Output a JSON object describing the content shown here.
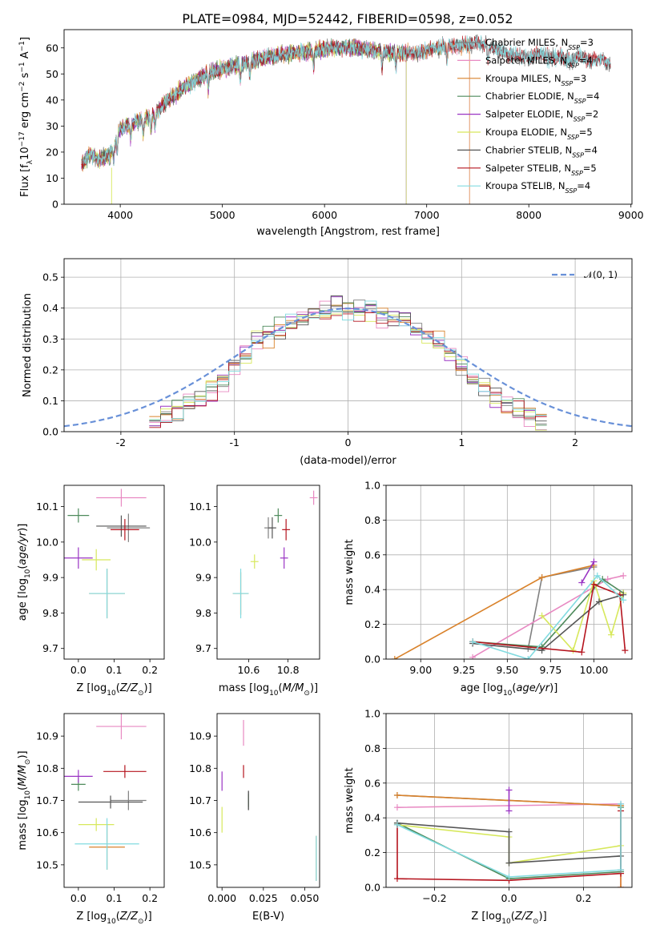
{
  "figure": {
    "title": "PLATE=0984, MJD=52442, FIBERID=0598, z=0.052"
  },
  "model_colors": [
    "#808080",
    "#e889c2",
    "#d9822b",
    "#4d8a5b",
    "#9a34c4",
    "#d7e85c",
    "#555555",
    "#b5141e",
    "#82dbe0"
  ],
  "chart_data": [
    {
      "id": "spectrum",
      "type": "line",
      "title": "PLATE=0984, MJD=52442, FIBERID=0598, z=0.052",
      "xlabel": "wavelength [Angstrom, rest frame]",
      "ylabel": "Flux [f_λ 10^-17 erg cm^-2 s^-1 A^-1]",
      "xlim": [
        3450,
        9010
      ],
      "ylim": [
        0,
        67
      ],
      "xticks": [
        4000,
        5000,
        6000,
        7000,
        8000,
        9000
      ],
      "yticks": [
        0,
        10,
        20,
        30,
        40,
        50,
        60
      ],
      "grid": false,
      "legend_position": "top-right",
      "continuum": {
        "x": [
          3620,
          3700,
          3800,
          3900,
          3960,
          4000,
          4100,
          4200,
          4300,
          4400,
          4500,
          4700,
          4900,
          5100,
          5300,
          5500,
          5700,
          5900,
          6100,
          6300,
          6500,
          6700,
          6900,
          7100,
          7300,
          7500,
          7600,
          7700,
          7800,
          7900,
          8000,
          8100,
          8200,
          8300,
          8400,
          8500,
          8600,
          8700,
          8800
        ],
        "y": [
          15,
          19,
          17,
          19,
          25,
          29,
          31,
          32,
          34,
          37,
          41,
          47,
          51,
          53,
          55,
          57,
          58,
          59,
          60,
          60,
          59,
          58,
          58,
          60,
          61,
          62,
          61,
          59,
          58,
          57,
          56,
          58,
          56,
          57,
          55,
          57,
          55,
          56,
          54
        ]
      },
      "series": [
        {
          "name": "Chabrier MILES, N_SSP=3",
          "x_end": 8800
        },
        {
          "name": "Salpeter MILES, N_SSP=4",
          "x_end": 7420
        },
        {
          "name": "Kroupa MILES, N_SSP=3",
          "x_end": 7420
        },
        {
          "name": "Chabrier ELODIE, N_SSP=4",
          "x_end": 6800
        },
        {
          "name": "Salpeter ELODIE, N_SSP=2",
          "x_end": 6800
        },
        {
          "name": "Kroupa ELODIE, N_SSP=5",
          "x_end": 6800
        },
        {
          "name": "Chabrier STELIB, N_SSP=4",
          "x_end": 8800
        },
        {
          "name": "Salpeter STELIB, N_SSP=5",
          "x_end": 8800
        },
        {
          "name": "Kroupa STELIB, N_SSP=4",
          "x_end": 8800
        }
      ],
      "legend": {
        "entries": [
          {
            "main": "Chabrier MILES, N",
            "sub": "SSP",
            "suffix": "=3"
          },
          {
            "main": "Salpeter MILES, N",
            "sub": "SSP",
            "suffix": "=4"
          },
          {
            "main": "Kroupa MILES, N",
            "sub": "SSP",
            "suffix": "=3"
          },
          {
            "main": "Chabrier ELODIE, N",
            "sub": "SSP",
            "suffix": "=4"
          },
          {
            "main": "Salpeter ELODIE, N",
            "sub": "SSP",
            "suffix": "=2"
          },
          {
            "main": "Kroupa ELODIE, N",
            "sub": "SSP",
            "suffix": "=5"
          },
          {
            "main": "Chabrier STELIB, N",
            "sub": "SSP",
            "suffix": "=4"
          },
          {
            "main": "Salpeter STELIB, N",
            "sub": "SSP",
            "suffix": "=5"
          },
          {
            "main": "Kroupa STELIB, N",
            "sub": "SSP",
            "suffix": "=4"
          }
        ]
      }
    },
    {
      "id": "residuals",
      "type": "line",
      "xlabel": "(data-model)/error",
      "ylabel": "Normed distribution",
      "xlim": [
        -2.5,
        2.5
      ],
      "ylim": [
        0,
        0.56
      ],
      "xticks": [
        -2,
        -1,
        0,
        1,
        2
      ],
      "yticks": [
        0.0,
        0.1,
        0.2,
        0.3,
        0.4,
        0.5
      ],
      "grid": true,
      "legend_position": "top-right",
      "reference_curve": {
        "name": "N(0,1)",
        "legend_label": "𝒩(0, 1)",
        "mean": 0,
        "sigma": 1,
        "color": "#6890d8",
        "style": "dashed"
      },
      "histogram_bin_width": 0.1,
      "histogram_center": [
        0.03,
        0.05,
        0.07,
        0.09,
        0.11,
        0.14,
        0.17,
        0.21,
        0.25,
        0.29,
        0.31,
        0.33,
        0.35,
        0.37,
        0.38,
        0.39,
        0.4,
        0.4,
        0.4,
        0.39,
        0.38,
        0.37,
        0.35,
        0.33,
        0.31,
        0.29,
        0.25,
        0.21,
        0.17,
        0.14,
        0.11,
        0.09,
        0.07,
        0.05,
        0.03
      ]
    },
    {
      "id": "age-vs-Z",
      "type": "scatter",
      "xlabel": "Z [log10(Z/Z☉)]",
      "ylabel": "age [log10(age/yr)]",
      "xlim": [
        -0.04,
        0.24
      ],
      "ylim": [
        9.67,
        10.16
      ],
      "xticks": [
        0.0,
        0.1,
        0.2
      ],
      "yticks": [
        9.7,
        9.8,
        9.9,
        10.0,
        10.1
      ],
      "grid": false,
      "points": [
        {
          "x": 0.14,
          "y": 10.04,
          "xerr": 0.06,
          "yerr": 0.04
        },
        {
          "x": 0.12,
          "y": 10.125,
          "xerr": 0.07,
          "yerr": 0.025
        },
        {
          "x": 0.08,
          "y": 9.855,
          "xerr": 0.05,
          "yerr": 0.07
        },
        {
          "x": 0.0,
          "y": 10.075,
          "xerr": 0.03,
          "yerr": 0.02
        },
        {
          "x": 0.0,
          "y": 9.955,
          "xerr": 0.04,
          "yerr": 0.03
        },
        {
          "x": 0.05,
          "y": 9.95,
          "xerr": 0.04,
          "yerr": 0.03
        },
        {
          "x": 0.12,
          "y": 10.045,
          "xerr": 0.07,
          "yerr": 0.03
        },
        {
          "x": 0.13,
          "y": 10.035,
          "xerr": 0.04,
          "yerr": 0.03
        },
        {
          "x": 0.08,
          "y": 9.855,
          "xerr": 0.05,
          "yerr": 0.07
        }
      ]
    },
    {
      "id": "age-vs-mass",
      "type": "scatter",
      "xlabel": "mass [log10(M/M☉)]",
      "ylabel": "",
      "xlim": [
        10.44,
        10.96
      ],
      "ylim": [
        9.67,
        10.16
      ],
      "xticks": [
        10.6,
        10.8
      ],
      "yticks": [
        9.7,
        9.8,
        9.9,
        10.0,
        10.1
      ],
      "grid": false,
      "points": [
        {
          "x": 10.7,
          "y": 10.04,
          "xerr": 0.02,
          "yerr": 0.03
        },
        {
          "x": 10.93,
          "y": 10.125,
          "xerr": 0.02,
          "yerr": 0.02
        },
        {
          "x": 10.56,
          "y": 9.855,
          "xerr": 0.04,
          "yerr": 0.06
        },
        {
          "x": 10.75,
          "y": 10.075,
          "xerr": 0.02,
          "yerr": 0.02
        },
        {
          "x": 10.78,
          "y": 9.955,
          "xerr": 0.02,
          "yerr": 0.03
        },
        {
          "x": 10.63,
          "y": 9.945,
          "xerr": 0.02,
          "yerr": 0.02
        },
        {
          "x": 10.72,
          "y": 10.04,
          "xerr": 0.02,
          "yerr": 0.03
        },
        {
          "x": 10.79,
          "y": 10.035,
          "xerr": 0.02,
          "yerr": 0.03
        },
        {
          "x": 10.56,
          "y": 9.855,
          "xerr": 0.04,
          "yerr": 0.07
        }
      ]
    },
    {
      "id": "massweight-vs-age",
      "type": "line",
      "xlabel": "age [log10(age/yr)]",
      "ylabel": "mass weight",
      "xlim": [
        8.8,
        10.22
      ],
      "ylim": [
        0,
        1
      ],
      "xticks": [
        9.0,
        9.25,
        9.5,
        9.75,
        10.0
      ],
      "yticks": [
        0.0,
        0.2,
        0.4,
        0.6,
        0.8,
        1.0
      ],
      "grid": true,
      "series": [
        {
          "x": [
            9.62,
            9.7,
            10.0
          ],
          "y": [
            0.06,
            0.47,
            0.53
          ]
        },
        {
          "x": [
            9.3,
            10.08,
            10.17
          ],
          "y": [
            0.01,
            0.46,
            0.48
          ]
        },
        {
          "x": [
            8.85,
            9.7,
            10.0
          ],
          "y": [
            0.0,
            0.47,
            0.54
          ]
        },
        {
          "x": [
            9.3,
            9.7,
            10.05,
            10.17
          ],
          "y": [
            0.1,
            0.07,
            0.46,
            0.38
          ]
        },
        {
          "x": [
            9.93,
            10.0
          ],
          "y": [
            0.44,
            0.56
          ]
        },
        {
          "x": [
            9.7,
            9.88,
            10.0,
            10.1,
            10.17
          ],
          "y": [
            0.25,
            0.05,
            0.45,
            0.14,
            0.38
          ]
        },
        {
          "x": [
            9.3,
            9.7,
            10.03,
            10.17
          ],
          "y": [
            0.09,
            0.05,
            0.33,
            0.37
          ]
        },
        {
          "x": [
            9.3,
            9.93,
            10.0,
            10.15,
            10.18
          ],
          "y": [
            0.1,
            0.04,
            0.43,
            0.37,
            0.05
          ]
        },
        {
          "x": [
            9.3,
            9.62,
            10.02,
            10.17
          ],
          "y": [
            0.1,
            0.0,
            0.48,
            0.34
          ]
        }
      ]
    },
    {
      "id": "mass-vs-Z",
      "type": "scatter",
      "xlabel": "Z [log10(Z/Z☉)]",
      "ylabel": "mass [log10(M/M☉)]",
      "xlim": [
        -0.04,
        0.24
      ],
      "ylim": [
        10.43,
        10.97
      ],
      "xticks": [
        0.0,
        0.1,
        0.2
      ],
      "yticks": [
        10.5,
        10.6,
        10.7,
        10.8,
        10.9
      ],
      "grid": false,
      "points": [
        {
          "x": 0.14,
          "y": 10.7,
          "xerr": 0.05,
          "yerr": 0.03
        },
        {
          "x": 0.12,
          "y": 10.93,
          "xerr": 0.07,
          "yerr": 0.04
        },
        {
          "x": 0.08,
          "y": 10.555,
          "xerr": 0.05,
          "yerr": 0.07
        },
        {
          "x": 0.0,
          "y": 10.75,
          "xerr": 0.02,
          "yerr": 0.02
        },
        {
          "x": 0.0,
          "y": 10.775,
          "xerr": 0.04,
          "yerr": 0.02
        },
        {
          "x": 0.05,
          "y": 10.625,
          "xerr": 0.05,
          "yerr": 0.02
        },
        {
          "x": 0.09,
          "y": 10.695,
          "xerr": 0.09,
          "yerr": 0.02
        },
        {
          "x": 0.13,
          "y": 10.79,
          "xerr": 0.06,
          "yerr": 0.02
        },
        {
          "x": 0.08,
          "y": 10.565,
          "xerr": 0.09,
          "yerr": 0.08
        }
      ]
    },
    {
      "id": "mass-vs-ebv",
      "type": "scatter",
      "xlabel": "E(B-V)",
      "ylabel": "",
      "xlim": [
        -0.003,
        0.059
      ],
      "ylim": [
        10.43,
        10.97
      ],
      "xticks": [
        0.0,
        0.025,
        0.05
      ],
      "yticks": [
        10.5,
        10.6,
        10.7,
        10.8,
        10.9
      ],
      "grid": false,
      "points": [
        {
          "x": 0.016,
          "y": 10.7,
          "xerr": 0.0,
          "yerr": 0.03
        },
        {
          "x": 0.013,
          "y": 10.91,
          "xerr": 0.0,
          "yerr": 0.04
        },
        {
          "x": 0.057,
          "y": 10.52,
          "xerr": 0.0,
          "yerr": 0.07
        },
        {
          "x": 0.016,
          "y": 10.7,
          "xerr": 0.0,
          "yerr": 0.02
        },
        {
          "x": 0.0,
          "y": 10.76,
          "xerr": 0.0,
          "yerr": 0.03
        },
        {
          "x": 0.0,
          "y": 10.64,
          "xerr": 0.0,
          "yerr": 0.04
        },
        {
          "x": 0.016,
          "y": 10.7,
          "xerr": 0.0,
          "yerr": 0.03
        },
        {
          "x": 0.013,
          "y": 10.79,
          "xerr": 0.0,
          "yerr": 0.02
        },
        {
          "x": 0.057,
          "y": 10.52,
          "xerr": 0.0,
          "yerr": 0.07
        }
      ]
    },
    {
      "id": "massweight-vs-Z",
      "type": "line",
      "xlabel": "Z [log10(Z/Z☉)]",
      "ylabel": "mass weight",
      "xlim": [
        -0.33,
        0.33
      ],
      "ylim": [
        0,
        1
      ],
      "xticks": [
        -0.2,
        0.0,
        0.2
      ],
      "yticks": [
        0.0,
        0.2,
        0.4,
        0.6,
        0.8,
        1.0
      ],
      "grid": true,
      "series": [
        {
          "x": [
            -0.3,
            0.3
          ],
          "y": [
            0.53,
            0.47
          ]
        },
        {
          "x": [
            -0.3,
            0.0,
            0.3,
            0.3
          ],
          "y": [
            0.46,
            0.47,
            0.48,
            0.0
          ]
        },
        {
          "x": [
            -0.3,
            0.3,
            0.3
          ],
          "y": [
            0.53,
            0.47,
            0.0
          ]
        },
        {
          "x": [
            -0.3,
            0.0,
            0.3,
            0.3
          ],
          "y": [
            0.37,
            0.05,
            0.09,
            0.46
          ]
        },
        {
          "x": [
            0.0,
            0.0
          ],
          "y": [
            0.44,
            0.56
          ]
        },
        {
          "x": [
            -0.3,
            0.0,
            0.0,
            0.3
          ],
          "y": [
            0.36,
            0.29,
            0.14,
            0.24
          ]
        },
        {
          "x": [
            -0.3,
            0.0,
            0.0,
            0.3,
            0.3
          ],
          "y": [
            0.37,
            0.32,
            0.14,
            0.18,
            0.1
          ]
        },
        {
          "x": [
            -0.3,
            -0.3,
            0.0,
            0.3,
            0.3
          ],
          "y": [
            0.36,
            0.05,
            0.04,
            0.08,
            0.44
          ]
        },
        {
          "x": [
            -0.3,
            0.0,
            0.3,
            0.3
          ],
          "y": [
            0.36,
            0.06,
            0.1,
            0.48
          ]
        }
      ]
    }
  ]
}
